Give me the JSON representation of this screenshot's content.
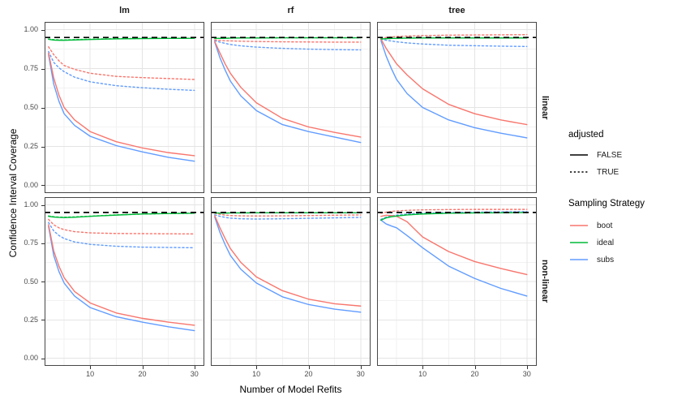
{
  "axes": {
    "x_title": "Number of Model Refits",
    "y_title": "Confidence Interval Coverage",
    "x_tick_labels": [
      "10",
      "20",
      "30"
    ],
    "y_tick_labels": [
      "1.00",
      "0.75",
      "0.50",
      "0.25",
      "0.00"
    ]
  },
  "legend": {
    "adjusted": {
      "title": "adjusted",
      "items": [
        {
          "label": "FALSE",
          "dash": "solid",
          "color": "#000000"
        },
        {
          "label": "TRUE",
          "dash": "dotted",
          "color": "#000000"
        }
      ]
    },
    "sampling": {
      "title": "Sampling Strategy",
      "items": [
        {
          "label": "boot",
          "dash": "solid",
          "color": "#F8766D"
        },
        {
          "label": "ideal",
          "dash": "solid",
          "color": "#00BA38"
        },
        {
          "label": "subs",
          "dash": "solid",
          "color": "#619CFF"
        }
      ]
    }
  },
  "chart_data": {
    "type": "line",
    "facet_cols": {
      "0": "lm",
      "1": "rf",
      "2": "tree"
    },
    "facet_rows": {
      "0": "linear",
      "1": "non-linear"
    },
    "xlabel": "Number of Model Refits",
    "ylabel": "Confidence Interval Coverage",
    "x": [
      2,
      3,
      4,
      5,
      7,
      10,
      15,
      20,
      25,
      30
    ],
    "x_ticks": [
      10,
      20,
      30
    ],
    "x_minor_ticks": [
      5,
      15,
      25
    ],
    "y_ticks": [
      1,
      0.75,
      0.5,
      0.25,
      0
    ],
    "y_minor_ticks": [
      0.125,
      0.375,
      0.625,
      0.875
    ],
    "xlim": [
      1.25,
      31.9
    ],
    "ylim": [
      -0.05,
      1.05
    ],
    "grid": true,
    "legend_position": "right",
    "reference_line_y": 0.95,
    "colors": {
      "boot": "#F8766D",
      "ideal": "#00BA38",
      "subs": "#619CFF",
      "reference": "#000000"
    },
    "linetypes": {
      "FALSE": "solid",
      "TRUE": "dotted"
    },
    "panels": [
      {
        "facet_row": "linear",
        "facet_col": "lm",
        "series": {
          "subs_TRUE": [
            0.86,
            0.79,
            0.755,
            0.73,
            0.695,
            0.665,
            0.64,
            0.627,
            0.617,
            0.61
          ],
          "boot_TRUE": [
            0.89,
            0.84,
            0.8,
            0.77,
            0.745,
            0.72,
            0.7,
            0.692,
            0.686,
            0.68
          ],
          "ideal_TRUE": [
            0.94,
            0.936,
            0.934,
            0.934,
            0.936,
            0.939,
            0.942,
            0.944,
            0.945,
            0.945
          ],
          "subs_FALSE": [
            0.84,
            0.65,
            0.54,
            0.46,
            0.385,
            0.315,
            0.255,
            0.215,
            0.18,
            0.155
          ],
          "boot_FALSE": [
            0.85,
            0.69,
            0.58,
            0.5,
            0.42,
            0.345,
            0.28,
            0.24,
            0.21,
            0.19
          ],
          "ideal_FALSE": [
            0.938,
            0.933,
            0.932,
            0.932,
            0.934,
            0.937,
            0.941,
            0.943,
            0.944,
            0.945
          ]
        }
      },
      {
        "facet_row": "linear",
        "facet_col": "rf",
        "series": {
          "subs_TRUE": [
            0.93,
            0.92,
            0.912,
            0.905,
            0.896,
            0.888,
            0.88,
            0.875,
            0.872,
            0.87
          ],
          "boot_TRUE": [
            0.935,
            0.931,
            0.929,
            0.928,
            0.926,
            0.924,
            0.922,
            0.921,
            0.92,
            0.92
          ],
          "ideal_TRUE": [
            0.944,
            0.944,
            0.945,
            0.946,
            0.947,
            0.947,
            0.948,
            0.948,
            0.948,
            0.948
          ],
          "subs_FALSE": [
            0.92,
            0.82,
            0.74,
            0.67,
            0.575,
            0.48,
            0.39,
            0.345,
            0.31,
            0.275
          ],
          "boot_FALSE": [
            0.925,
            0.85,
            0.78,
            0.72,
            0.63,
            0.53,
            0.43,
            0.375,
            0.34,
            0.31
          ],
          "ideal_FALSE": [
            0.945,
            0.944,
            0.945,
            0.946,
            0.947,
            0.947,
            0.948,
            0.948,
            0.948,
            0.948
          ]
        }
      },
      {
        "facet_row": "linear",
        "facet_col": "tree",
        "series": {
          "subs_TRUE": [
            0.94,
            0.932,
            0.927,
            0.922,
            0.915,
            0.908,
            0.9,
            0.897,
            0.894,
            0.892
          ],
          "boot_TRUE": [
            0.945,
            0.95,
            0.953,
            0.956,
            0.959,
            0.962,
            0.965,
            0.966,
            0.967,
            0.968
          ],
          "ideal_TRUE": [
            0.94,
            0.942,
            0.944,
            0.945,
            0.946,
            0.947,
            0.947,
            0.947,
            0.947,
            0.947
          ],
          "subs_FALSE": [
            0.93,
            0.83,
            0.75,
            0.68,
            0.59,
            0.5,
            0.42,
            0.37,
            0.335,
            0.305
          ],
          "boot_FALSE": [
            0.94,
            0.88,
            0.83,
            0.78,
            0.71,
            0.62,
            0.52,
            0.46,
            0.42,
            0.39
          ],
          "ideal_FALSE": [
            0.94,
            0.942,
            0.944,
            0.945,
            0.946,
            0.947,
            0.947,
            0.947,
            0.947,
            0.947
          ]
        }
      },
      {
        "facet_row": "non-linear",
        "facet_col": "lm",
        "series": {
          "subs_TRUE": [
            0.885,
            0.83,
            0.8,
            0.78,
            0.758,
            0.742,
            0.73,
            0.724,
            0.722,
            0.72
          ],
          "boot_TRUE": [
            0.905,
            0.87,
            0.85,
            0.838,
            0.825,
            0.817,
            0.813,
            0.812,
            0.811,
            0.81
          ],
          "ideal_TRUE": [
            0.927,
            0.922,
            0.92,
            0.919,
            0.921,
            0.926,
            0.934,
            0.94,
            0.943,
            0.945
          ],
          "subs_FALSE": [
            0.86,
            0.67,
            0.565,
            0.49,
            0.405,
            0.33,
            0.27,
            0.235,
            0.205,
            0.18
          ],
          "boot_FALSE": [
            0.87,
            0.7,
            0.6,
            0.525,
            0.435,
            0.36,
            0.295,
            0.26,
            0.235,
            0.215
          ],
          "ideal_FALSE": [
            0.925,
            0.92,
            0.918,
            0.917,
            0.919,
            0.925,
            0.933,
            0.94,
            0.943,
            0.945
          ]
        }
      },
      {
        "facet_row": "non-linear",
        "facet_col": "rf",
        "series": {
          "subs_TRUE": [
            0.935,
            0.925,
            0.918,
            0.913,
            0.909,
            0.907,
            0.909,
            0.912,
            0.915,
            0.918
          ],
          "boot_TRUE": [
            0.945,
            0.938,
            0.933,
            0.93,
            0.928,
            0.927,
            0.928,
            0.93,
            0.932,
            0.934
          ],
          "ideal_TRUE": [
            0.947,
            0.946,
            0.946,
            0.947,
            0.947,
            0.948,
            0.948,
            0.948,
            0.948,
            0.948
          ],
          "subs_FALSE": [
            0.92,
            0.82,
            0.74,
            0.67,
            0.58,
            0.49,
            0.4,
            0.35,
            0.32,
            0.3
          ],
          "boot_FALSE": [
            0.93,
            0.85,
            0.78,
            0.715,
            0.625,
            0.53,
            0.44,
            0.385,
            0.355,
            0.34
          ],
          "ideal_FALSE": [
            0.947,
            0.946,
            0.946,
            0.947,
            0.947,
            0.948,
            0.948,
            0.948,
            0.948,
            0.948
          ]
        }
      },
      {
        "facet_row": "non-linear",
        "facet_col": "tree",
        "series": {
          "subs_TRUE": [
            0.905,
            0.92,
            0.928,
            0.933,
            0.94,
            0.945,
            0.95,
            0.952,
            0.954,
            0.955
          ],
          "boot_TRUE": [
            0.945,
            0.952,
            0.957,
            0.96,
            0.964,
            0.967,
            0.969,
            0.97,
            0.97,
            0.97
          ],
          "ideal_TRUE": [
            0.9,
            0.916,
            0.923,
            0.928,
            0.935,
            0.941,
            0.945,
            0.947,
            0.948,
            0.95
          ],
          "subs_FALSE": [
            0.9,
            0.875,
            0.862,
            0.85,
            0.8,
            0.72,
            0.6,
            0.52,
            0.455,
            0.405
          ],
          "boot_FALSE": [
            0.925,
            0.932,
            0.93,
            0.925,
            0.89,
            0.79,
            0.695,
            0.63,
            0.585,
            0.545
          ],
          "ideal_FALSE": [
            0.9,
            0.915,
            0.922,
            0.927,
            0.934,
            0.94,
            0.945,
            0.947,
            0.948,
            0.95
          ]
        }
      }
    ]
  }
}
